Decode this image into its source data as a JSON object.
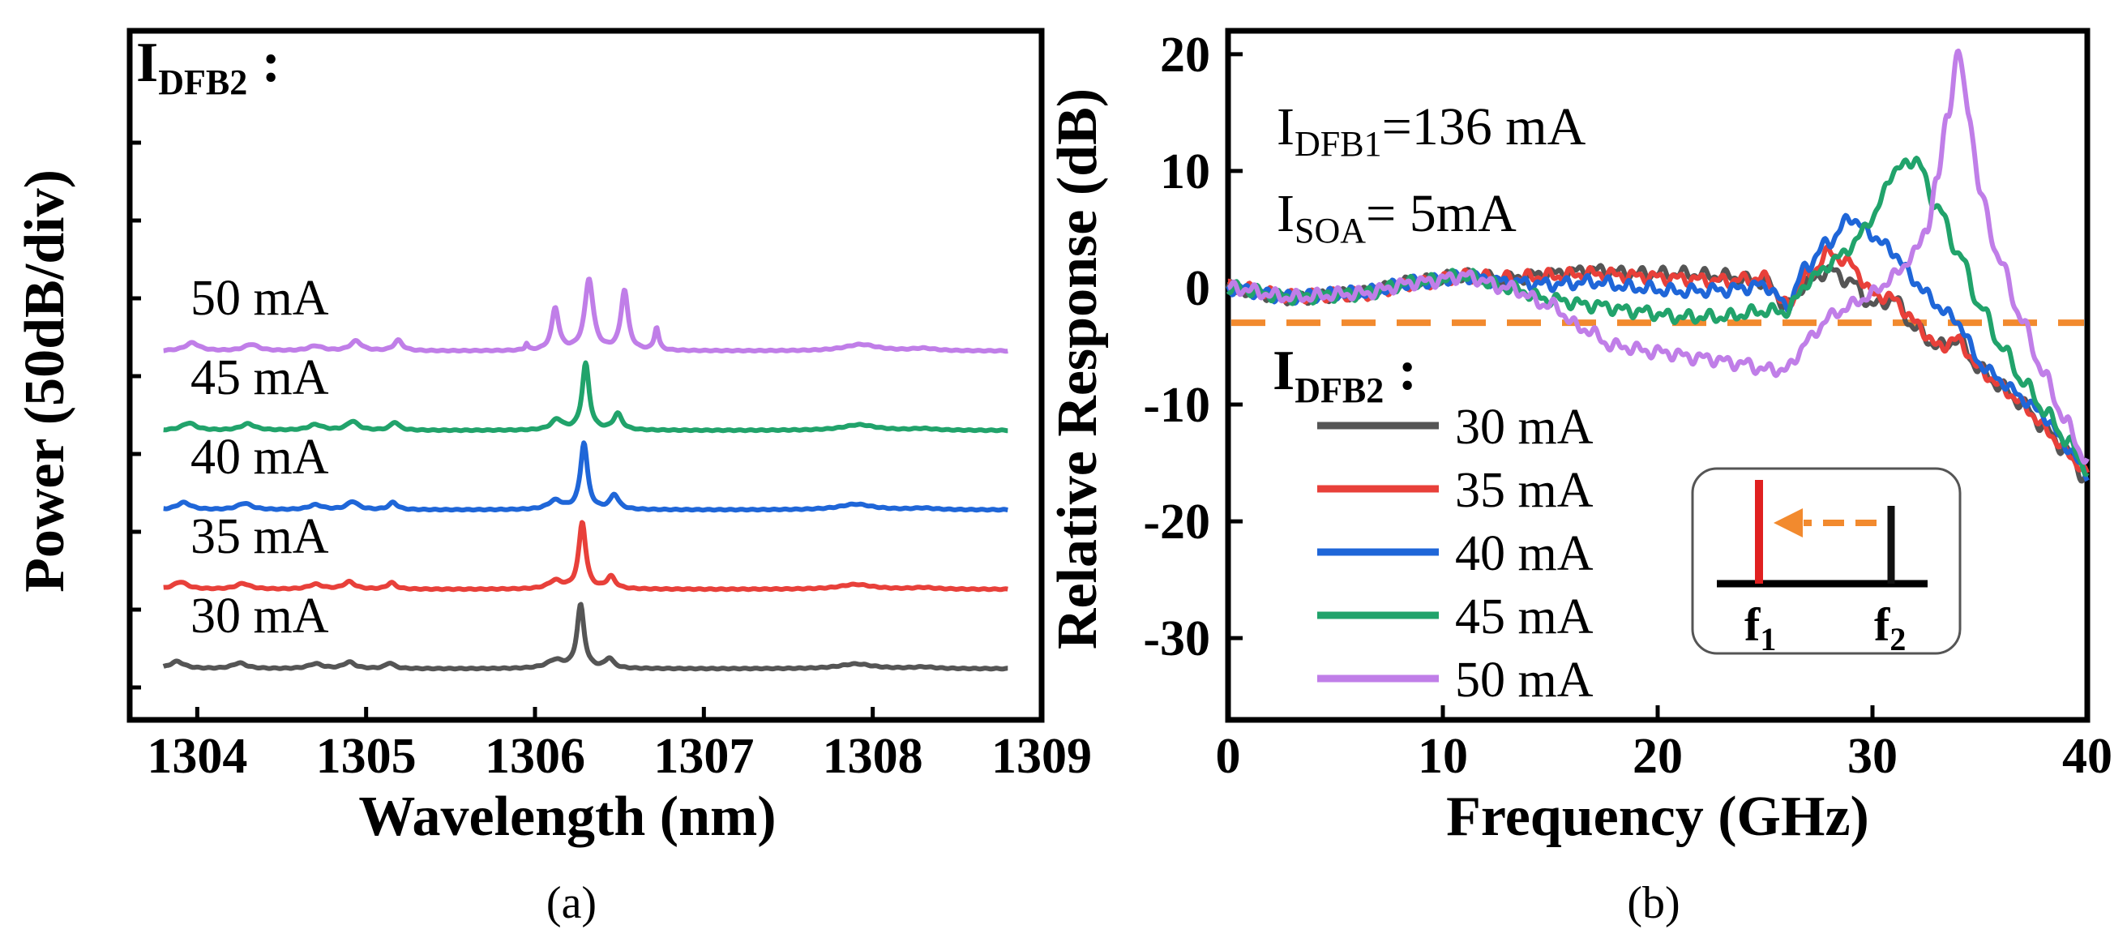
{
  "chart_data": [
    {
      "type": "line",
      "panel_label": "(a)",
      "xlabel": "Wavelength (nm)",
      "ylabel": "Power (50dB/div)",
      "xlim": [
        1303.6,
        1309.0
      ],
      "xticks": [
        1304,
        1305,
        1306,
        1307,
        1308,
        1309
      ],
      "annotation": {
        "main": "I",
        "sub": "DFB2",
        "suffix": " :"
      },
      "baseline": 0.0,
      "peak_positions_nm": [
        1303.9,
        1304.3,
        1304.7,
        1304.9,
        1305.15,
        1306.1,
        1306.28,
        1306.45,
        1307.9,
        1308.3
      ],
      "series": [
        {
          "name": "30 mA",
          "label": "30 mA",
          "color": "#555555",
          "offset": 0,
          "peaks": [
            [
              1303.88,
              0.09,
              0.05
            ],
            [
              1304.25,
              0.07,
              0.05
            ],
            [
              1304.7,
              0.06,
              0.05
            ],
            [
              1304.9,
              0.08,
              0.04
            ],
            [
              1305.14,
              0.07,
              0.03
            ],
            [
              1306.12,
              0.1,
              0.06
            ],
            [
              1306.27,
              0.78,
              0.025
            ],
            [
              1306.44,
              0.12,
              0.03
            ],
            [
              1307.9,
              0.06,
              0.12
            ],
            [
              1308.3,
              0.02,
              0.08
            ]
          ]
        },
        {
          "name": "35 mA",
          "label": "35 mA",
          "color": "#e8403a",
          "offset": 1,
          "peaks": [
            [
              1303.9,
              0.09,
              0.05
            ],
            [
              1304.27,
              0.07,
              0.05
            ],
            [
              1304.7,
              0.06,
              0.05
            ],
            [
              1304.9,
              0.09,
              0.04
            ],
            [
              1305.15,
              0.08,
              0.03
            ],
            [
              1306.12,
              0.1,
              0.05
            ],
            [
              1306.28,
              0.82,
              0.025
            ],
            [
              1306.45,
              0.15,
              0.03
            ],
            [
              1307.9,
              0.06,
              0.12
            ],
            [
              1308.3,
              0.02,
              0.08
            ]
          ]
        },
        {
          "name": "40 mA",
          "label": "40 mA",
          "color": "#1f66d8",
          "offset": 2,
          "peaks": [
            [
              1303.92,
              0.09,
              0.05
            ],
            [
              1304.28,
              0.08,
              0.05
            ],
            [
              1304.7,
              0.06,
              0.05
            ],
            [
              1304.92,
              0.1,
              0.04
            ],
            [
              1305.16,
              0.09,
              0.03
            ],
            [
              1306.12,
              0.11,
              0.05
            ],
            [
              1306.29,
              0.82,
              0.025
            ],
            [
              1306.47,
              0.18,
              0.03
            ],
            [
              1307.9,
              0.07,
              0.12
            ],
            [
              1308.3,
              0.02,
              0.08
            ]
          ]
        },
        {
          "name": "45 mA",
          "label": "45 mA",
          "color": "#21a36b",
          "offset": 3,
          "peaks": [
            [
              1303.95,
              0.09,
              0.05
            ],
            [
              1304.3,
              0.08,
              0.05
            ],
            [
              1304.7,
              0.07,
              0.05
            ],
            [
              1304.92,
              0.11,
              0.04
            ],
            [
              1305.17,
              0.1,
              0.03
            ],
            [
              1306.13,
              0.13,
              0.04
            ],
            [
              1306.3,
              0.82,
              0.025
            ],
            [
              1306.49,
              0.2,
              0.03
            ],
            [
              1307.92,
              0.07,
              0.12
            ],
            [
              1308.3,
              0.02,
              0.08
            ]
          ]
        },
        {
          "name": "50 mA",
          "label": "50 mA",
          "color": "#c07ee8",
          "offset": 4,
          "peaks": [
            [
              1303.97,
              0.1,
              0.05
            ],
            [
              1304.32,
              0.08,
              0.05
            ],
            [
              1304.7,
              0.06,
              0.05
            ],
            [
              1304.94,
              0.12,
              0.04
            ],
            [
              1305.19,
              0.13,
              0.03
            ],
            [
              1305.95,
              0.08,
              0.01
            ],
            [
              1306.12,
              0.52,
              0.025
            ],
            [
              1306.32,
              0.88,
              0.03
            ],
            [
              1306.53,
              0.74,
              0.025
            ],
            [
              1306.72,
              0.28,
              0.015
            ],
            [
              1307.93,
              0.08,
              0.12
            ],
            [
              1308.3,
              0.03,
              0.08
            ]
          ]
        }
      ]
    },
    {
      "type": "line",
      "panel_label": "(b)",
      "xlabel": "Frequency (GHz)",
      "ylabel": "Relative Response (dB)",
      "xlim": [
        0,
        40
      ],
      "ylim": [
        -37,
        22
      ],
      "xticks": [
        0,
        10,
        20,
        30,
        40
      ],
      "yticks": [
        20,
        10,
        0,
        -10,
        -20,
        -30
      ],
      "reference_level_db": -3,
      "reference_color": "#f28a2e",
      "annotations": [
        {
          "main": "I",
          "sub": "DFB1",
          "suffix": "=136 mA"
        },
        {
          "main": "I",
          "sub": "SOA",
          "suffix": "= 5mA"
        }
      ],
      "legend_title": {
        "main": "I",
        "sub": "DFB2",
        "suffix": " :"
      },
      "inset": {
        "f1_label": "f",
        "f1_sub": "1",
        "f2_label": "f",
        "f2_sub": "2",
        "f1_color": "#e02020",
        "f2_color": "#111111",
        "arrow_color": "#f28a2e"
      },
      "series": [
        {
          "name": "30 mA",
          "color": "#555555",
          "x": [
            0,
            3,
            6,
            9,
            11,
            13,
            15,
            17,
            19,
            21,
            23,
            25,
            26,
            27,
            28,
            29,
            30,
            31,
            32,
            33,
            34,
            35,
            36,
            37,
            38,
            39,
            40
          ],
          "y": [
            0,
            -0.8,
            -0.5,
            0.5,
            1,
            0.8,
            1.2,
            1.5,
            1.2,
            1.2,
            1.0,
            0.5,
            -1.5,
            0.5,
            1.5,
            0.5,
            -1.5,
            -1.0,
            -3.5,
            -5.0,
            -4.5,
            -7.0,
            -8.5,
            -10.0,
            -12.0,
            -14.0,
            -16.5
          ]
        },
        {
          "name": "35 mA",
          "color": "#e8403a",
          "x": [
            0,
            3,
            6,
            9,
            11,
            13,
            15,
            17,
            19,
            21,
            23,
            25,
            26,
            27,
            28,
            29,
            30,
            31,
            32,
            33,
            34,
            35,
            36,
            37,
            38,
            39,
            40
          ],
          "y": [
            0,
            -0.8,
            -0.5,
            0.5,
            1,
            0.8,
            1.0,
            1.2,
            1.0,
            0.8,
            0.6,
            0.8,
            -1.5,
            1.0,
            3.0,
            2.0,
            -0.5,
            -1.0,
            -3.0,
            -5.0,
            -4.5,
            -7.0,
            -8.5,
            -10.0,
            -12.0,
            -14.0,
            -16.0
          ]
        },
        {
          "name": "40 mA",
          "color": "#1f66d8",
          "x": [
            0,
            3,
            6,
            9,
            11,
            13,
            15,
            17,
            19,
            21,
            23,
            25,
            26,
            27,
            28,
            29,
            30,
            31,
            32,
            33,
            34,
            35,
            36,
            37,
            38,
            39,
            40
          ],
          "y": [
            0,
            -0.8,
            -0.5,
            0.5,
            1,
            0.5,
            0.3,
            0.5,
            0.0,
            -0.3,
            -0.2,
            0.2,
            -1.5,
            2.0,
            4.0,
            6.0,
            4.5,
            3.0,
            0.5,
            -1.5,
            -3.0,
            -6.5,
            -8.0,
            -9.5,
            -11.0,
            -13.5,
            -16.0
          ]
        },
        {
          "name": "45 mA",
          "color": "#21a36b",
          "x": [
            0,
            3,
            6,
            9,
            11,
            13,
            15,
            17,
            19,
            21,
            23,
            25,
            26,
            27,
            28,
            29,
            30,
            31,
            32,
            33,
            34,
            35,
            36,
            37,
            38,
            39,
            40
          ],
          "y": [
            0,
            -0.8,
            -0.5,
            0.5,
            1,
            0.0,
            -1.0,
            -1.5,
            -2.0,
            -2.5,
            -2.5,
            -2.0,
            -2.0,
            0.5,
            2.0,
            3.5,
            6.0,
            10.0,
            11.0,
            7.0,
            3.0,
            -1.5,
            -5.0,
            -8.0,
            -10.5,
            -13.0,
            -15.5
          ]
        },
        {
          "name": "50 mA",
          "color": "#c07ee8",
          "x": [
            0,
            3,
            6,
            9,
            11,
            13,
            15,
            16.5,
            18,
            20,
            22,
            24,
            25,
            26,
            27,
            28,
            29,
            30,
            31,
            32,
            32.5,
            33,
            33.5,
            34,
            34.5,
            35,
            36,
            37,
            38,
            39,
            40
          ],
          "y": [
            0,
            -0.8,
            -0.5,
            0.5,
            1,
            0.0,
            -1.5,
            -3.5,
            -5.0,
            -5.5,
            -6.0,
            -6.5,
            -7.0,
            -7.0,
            -4.5,
            -2.5,
            -1.5,
            -0.5,
            1.0,
            3.0,
            5.0,
            9.0,
            15.0,
            20.0,
            15.0,
            8.0,
            2.0,
            -3.0,
            -7.5,
            -11.5,
            -15.0
          ]
        }
      ]
    }
  ]
}
